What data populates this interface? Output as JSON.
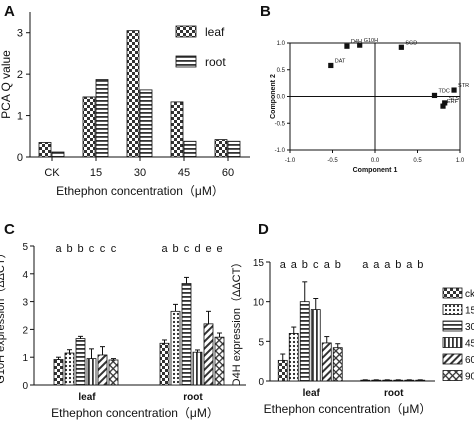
{
  "chart_data": [
    {
      "panel": "A",
      "type": "bar",
      "ylabel": "PCA Q value",
      "xlabel": "Ethephon concentration（μM）",
      "categories": [
        "CK",
        "15",
        "30",
        "45",
        "60"
      ],
      "ylim": [
        0,
        3.5
      ],
      "yticks": [
        "0",
        "1",
        "2",
        "3"
      ],
      "legend": "top-right",
      "series": [
        {
          "name": "leaf",
          "pattern": "checker",
          "values": [
            0.35,
            1.45,
            3.05,
            1.33,
            0.42
          ]
        },
        {
          "name": "root",
          "pattern": "hstripe",
          "values": [
            0.12,
            1.87,
            1.62,
            0.38,
            0.38
          ]
        }
      ]
    },
    {
      "panel": "B",
      "type": "scatter",
      "xlabel": "Component 1",
      "ylabel": "Component 2",
      "xlim": [
        -1.0,
        1.0
      ],
      "ylim": [
        -1.0,
        1.0
      ],
      "xticks": [
        "-1.0",
        "-0.5",
        "0.0",
        "0.5",
        "1.0"
      ],
      "yticks": [
        "-1.0",
        "-0.5",
        "0.0",
        "0.5",
        "1.0"
      ],
      "points": [
        {
          "label": "SGD",
          "x": 0.31,
          "y": 0.92
        },
        {
          "label": "D4H",
          "x": -0.33,
          "y": 0.94
        },
        {
          "label": "G10H",
          "x": -0.18,
          "y": 0.96
        },
        {
          "label": "DAT",
          "x": -0.52,
          "y": 0.58
        },
        {
          "label": "TDC",
          "x": 0.7,
          "y": 0.02
        },
        {
          "label": "STR",
          "x": 0.93,
          "y": 0.12
        },
        {
          "label": "SLS",
          "x": 0.82,
          "y": -0.12
        },
        {
          "label": "ERF",
          "x": 0.8,
          "y": -0.18
        }
      ]
    },
    {
      "panel": "C",
      "type": "bar",
      "ylabel": "G10H expression（ΔΔCT）",
      "xlabel": "Ethephon concentration（μM）",
      "groups": [
        "leaf",
        "root"
      ],
      "ylim": [
        0,
        5
      ],
      "yticks": [
        "0",
        "1",
        "2",
        "3",
        "4",
        "5"
      ],
      "letters": [
        [
          "a",
          "b",
          "b",
          "c",
          "c",
          "c"
        ],
        [
          "a",
          "b",
          "c",
          "d",
          "e",
          "e"
        ]
      ],
      "series": [
        {
          "pattern": "checker",
          "values": [
            0.92,
            1.5
          ],
          "errors": [
            0.08,
            0.12
          ]
        },
        {
          "pattern": "dots",
          "values": [
            1.15,
            2.65
          ],
          "errors": [
            0.12,
            0.25
          ]
        },
        {
          "pattern": "hstripe",
          "values": [
            1.67,
            3.65
          ],
          "errors": [
            0.08,
            0.22
          ]
        },
        {
          "pattern": "vstripe",
          "values": [
            0.95,
            1.18
          ],
          "errors": [
            0.35,
            0.08
          ]
        },
        {
          "pattern": "diag",
          "values": [
            1.08,
            2.2
          ],
          "errors": [
            0.3,
            0.45
          ]
        },
        {
          "pattern": "xhatch",
          "values": [
            0.9,
            1.72
          ],
          "errors": [
            0.05,
            0.15
          ]
        }
      ]
    },
    {
      "panel": "D",
      "type": "bar",
      "ylabel": "D4H expression（ΔΔCT）",
      "xlabel": "Ethephon concentration（μM）",
      "groups": [
        "leaf",
        "root"
      ],
      "ylim": [
        0,
        15
      ],
      "yticks": [
        "0",
        "5",
        "10",
        "15"
      ],
      "letters": [
        [
          "a",
          "a",
          "b",
          "c",
          "a",
          "b"
        ],
        [
          "a",
          "a",
          "a",
          "b",
          "a",
          "b"
        ]
      ],
      "legend": [
        "ck",
        "15",
        "30",
        "45",
        "60",
        "90"
      ],
      "series": [
        {
          "name": "ck",
          "pattern": "checker",
          "values": [
            2.6,
            0.1
          ],
          "errors": [
            0.8,
            0.05
          ]
        },
        {
          "name": "15",
          "pattern": "dots",
          "values": [
            6.0,
            0.1
          ],
          "errors": [
            0.8,
            0.05
          ]
        },
        {
          "name": "30",
          "pattern": "hstripe",
          "values": [
            10.0,
            0.1
          ],
          "errors": [
            2.5,
            0.05
          ]
        },
        {
          "name": "45",
          "pattern": "vstripe",
          "values": [
            9.0,
            0.1
          ],
          "errors": [
            1.4,
            0.05
          ]
        },
        {
          "name": "60",
          "pattern": "diag",
          "values": [
            4.8,
            0.1
          ],
          "errors": [
            0.8,
            0.05
          ]
        },
        {
          "name": "90",
          "pattern": "xhatch",
          "values": [
            4.2,
            0.1
          ],
          "errors": [
            0.5,
            0.05
          ]
        }
      ]
    }
  ]
}
